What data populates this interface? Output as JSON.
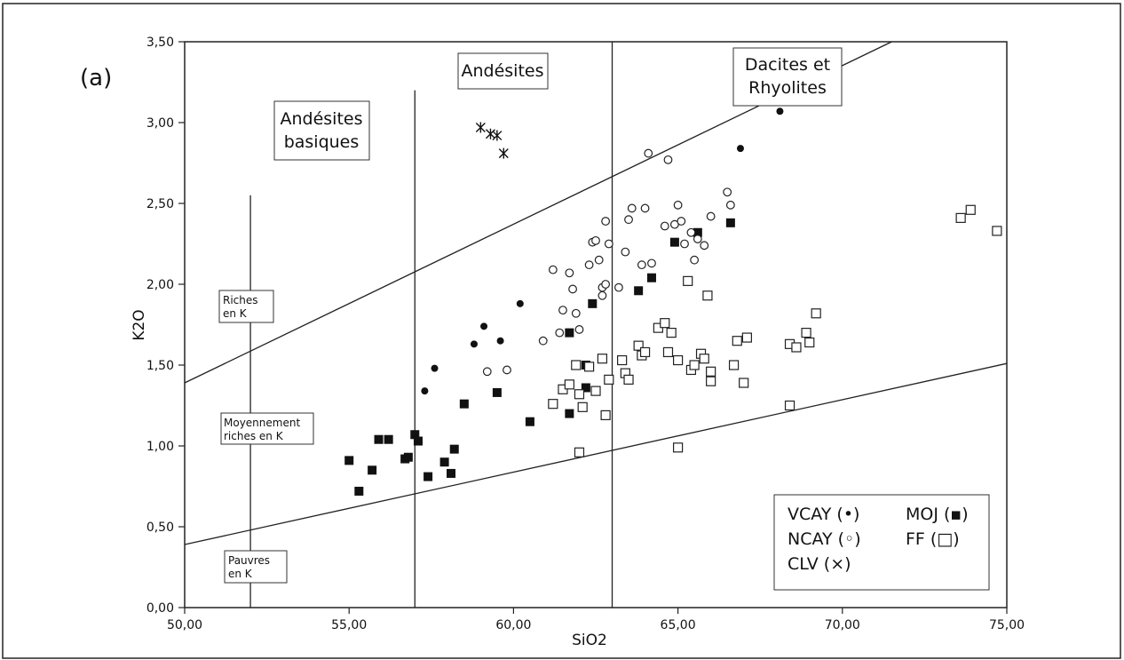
{
  "chart_data": {
    "type": "scatter",
    "panel_label": "(a)",
    "xlabel": "SiO2",
    "ylabel": "K2O",
    "xlim": [
      50,
      75
    ],
    "ylim": [
      0,
      3.5
    ],
    "x_ticks": [
      "50,00",
      "55,00",
      "60,00",
      "65,00",
      "70,00",
      "75,00"
    ],
    "y_ticks": [
      "0,00",
      "0,50",
      "1,00",
      "1,50",
      "2,00",
      "2,50",
      "3,00",
      "3,50"
    ],
    "grid": false,
    "boundary_lines": [
      {
        "from": [
          50,
          1.39
        ],
        "to": [
          71.5,
          3.5
        ]
      },
      {
        "from": [
          50,
          0.39
        ],
        "to": [
          75,
          1.51
        ]
      }
    ],
    "vertical_lines": [
      {
        "x": 52,
        "y_top": 2.55
      },
      {
        "x": 57,
        "y_top": 3.2
      },
      {
        "x": 63,
        "y_top": 3.5
      }
    ],
    "field_labels": [
      {
        "lines": [
          "Andésites",
          "basiques"
        ],
        "boxed": true
      },
      {
        "lines": [
          "Andésites"
        ],
        "boxed": true
      },
      {
        "lines": [
          "Dacites et",
          "Rhyolites"
        ],
        "boxed": true
      },
      {
        "lines": [
          "Riches",
          "en K"
        ],
        "boxed": true
      },
      {
        "lines": [
          "Moyennement",
          "riches  en K"
        ],
        "boxed": true
      },
      {
        "lines": [
          "Pauvres",
          "en K"
        ],
        "boxed": true
      }
    ],
    "legend_position": "bottom-right",
    "legend": [
      "VCAY (•)",
      "MOJ (▪)",
      "NCAY (◦)",
      "FF (□)",
      "CLV (×)"
    ],
    "series": [
      {
        "name": "VCAY",
        "marker": "filled-circle",
        "points": [
          [
            57.3,
            1.34
          ],
          [
            57.6,
            1.48
          ],
          [
            58.8,
            1.63
          ],
          [
            59.1,
            1.74
          ],
          [
            59.6,
            1.65
          ],
          [
            60.2,
            1.88
          ],
          [
            66.9,
            2.84
          ],
          [
            68.1,
            3.07
          ]
        ]
      },
      {
        "name": "MOJ",
        "marker": "filled-square",
        "points": [
          [
            55.0,
            0.91
          ],
          [
            55.3,
            0.72
          ],
          [
            55.7,
            0.85
          ],
          [
            55.9,
            1.04
          ],
          [
            56.2,
            1.04
          ],
          [
            56.7,
            0.92
          ],
          [
            56.8,
            0.93
          ],
          [
            57.0,
            1.07
          ],
          [
            57.1,
            1.03
          ],
          [
            57.4,
            0.81
          ],
          [
            57.9,
            0.9
          ],
          [
            58.1,
            0.83
          ],
          [
            58.2,
            0.98
          ],
          [
            58.5,
            1.26
          ],
          [
            59.5,
            1.33
          ],
          [
            60.5,
            1.15
          ],
          [
            61.7,
            1.2
          ],
          [
            61.7,
            1.7
          ],
          [
            62.2,
            1.5
          ],
          [
            62.2,
            1.36
          ],
          [
            62.4,
            1.88
          ],
          [
            63.8,
            1.96
          ],
          [
            64.2,
            2.04
          ],
          [
            64.9,
            2.26
          ],
          [
            65.6,
            2.32
          ],
          [
            66.6,
            2.38
          ]
        ]
      },
      {
        "name": "NCAY",
        "marker": "open-circle",
        "points": [
          [
            59.2,
            1.46
          ],
          [
            59.8,
            1.47
          ],
          [
            60.9,
            1.65
          ],
          [
            61.2,
            2.09
          ],
          [
            61.4,
            1.7
          ],
          [
            61.5,
            1.84
          ],
          [
            61.7,
            2.07
          ],
          [
            61.8,
            1.97
          ],
          [
            61.9,
            1.82
          ],
          [
            62.0,
            1.72
          ],
          [
            62.3,
            2.12
          ],
          [
            62.4,
            2.26
          ],
          [
            62.5,
            2.27
          ],
          [
            62.6,
            2.15
          ],
          [
            62.7,
            1.93
          ],
          [
            62.7,
            1.98
          ],
          [
            62.8,
            2.0
          ],
          [
            62.8,
            2.39
          ],
          [
            62.9,
            2.25
          ],
          [
            63.2,
            1.98
          ],
          [
            63.4,
            2.2
          ],
          [
            63.5,
            2.4
          ],
          [
            63.6,
            2.47
          ],
          [
            63.9,
            2.12
          ],
          [
            64.0,
            2.47
          ],
          [
            64.1,
            2.81
          ],
          [
            64.2,
            2.13
          ],
          [
            64.6,
            2.36
          ],
          [
            64.7,
            2.77
          ],
          [
            64.9,
            2.37
          ],
          [
            65.0,
            2.49
          ],
          [
            65.1,
            2.39
          ],
          [
            65.2,
            2.25
          ],
          [
            65.4,
            2.32
          ],
          [
            65.5,
            2.15
          ],
          [
            65.6,
            2.28
          ],
          [
            65.8,
            2.24
          ],
          [
            66.0,
            2.42
          ],
          [
            66.5,
            2.57
          ],
          [
            66.6,
            2.49
          ]
        ]
      },
      {
        "name": "FF",
        "marker": "open-square",
        "points": [
          [
            61.2,
            1.26
          ],
          [
            61.5,
            1.35
          ],
          [
            61.7,
            1.38
          ],
          [
            61.9,
            1.5
          ],
          [
            62.0,
            0.96
          ],
          [
            62.0,
            1.32
          ],
          [
            62.1,
            1.24
          ],
          [
            62.3,
            1.49
          ],
          [
            62.5,
            1.34
          ],
          [
            62.7,
            1.54
          ],
          [
            62.8,
            1.19
          ],
          [
            62.9,
            1.41
          ],
          [
            63.3,
            1.53
          ],
          [
            63.4,
            1.45
          ],
          [
            63.5,
            1.41
          ],
          [
            63.8,
            1.62
          ],
          [
            63.9,
            1.56
          ],
          [
            64.0,
            1.58
          ],
          [
            64.4,
            1.73
          ],
          [
            64.6,
            1.76
          ],
          [
            64.7,
            1.58
          ],
          [
            64.8,
            1.7
          ],
          [
            65.0,
            1.53
          ],
          [
            65.0,
            0.99
          ],
          [
            65.3,
            2.02
          ],
          [
            65.4,
            1.47
          ],
          [
            65.5,
            1.5
          ],
          [
            65.7,
            1.57
          ],
          [
            65.8,
            1.54
          ],
          [
            65.9,
            1.93
          ],
          [
            66.0,
            1.46
          ],
          [
            66.0,
            1.4
          ],
          [
            66.7,
            1.5
          ],
          [
            66.8,
            1.65
          ],
          [
            67.0,
            1.39
          ],
          [
            67.1,
            1.67
          ],
          [
            68.4,
            1.25
          ],
          [
            68.4,
            1.63
          ],
          [
            68.6,
            1.61
          ],
          [
            68.9,
            1.7
          ],
          [
            69.0,
            1.64
          ],
          [
            69.2,
            1.82
          ],
          [
            73.6,
            2.41
          ],
          [
            73.9,
            2.46
          ],
          [
            74.7,
            2.33
          ]
        ]
      },
      {
        "name": "CLV",
        "marker": "cross",
        "points": [
          [
            59.0,
            2.97
          ],
          [
            59.3,
            2.93
          ],
          [
            59.5,
            2.92
          ],
          [
            59.7,
            2.81
          ]
        ]
      }
    ]
  }
}
